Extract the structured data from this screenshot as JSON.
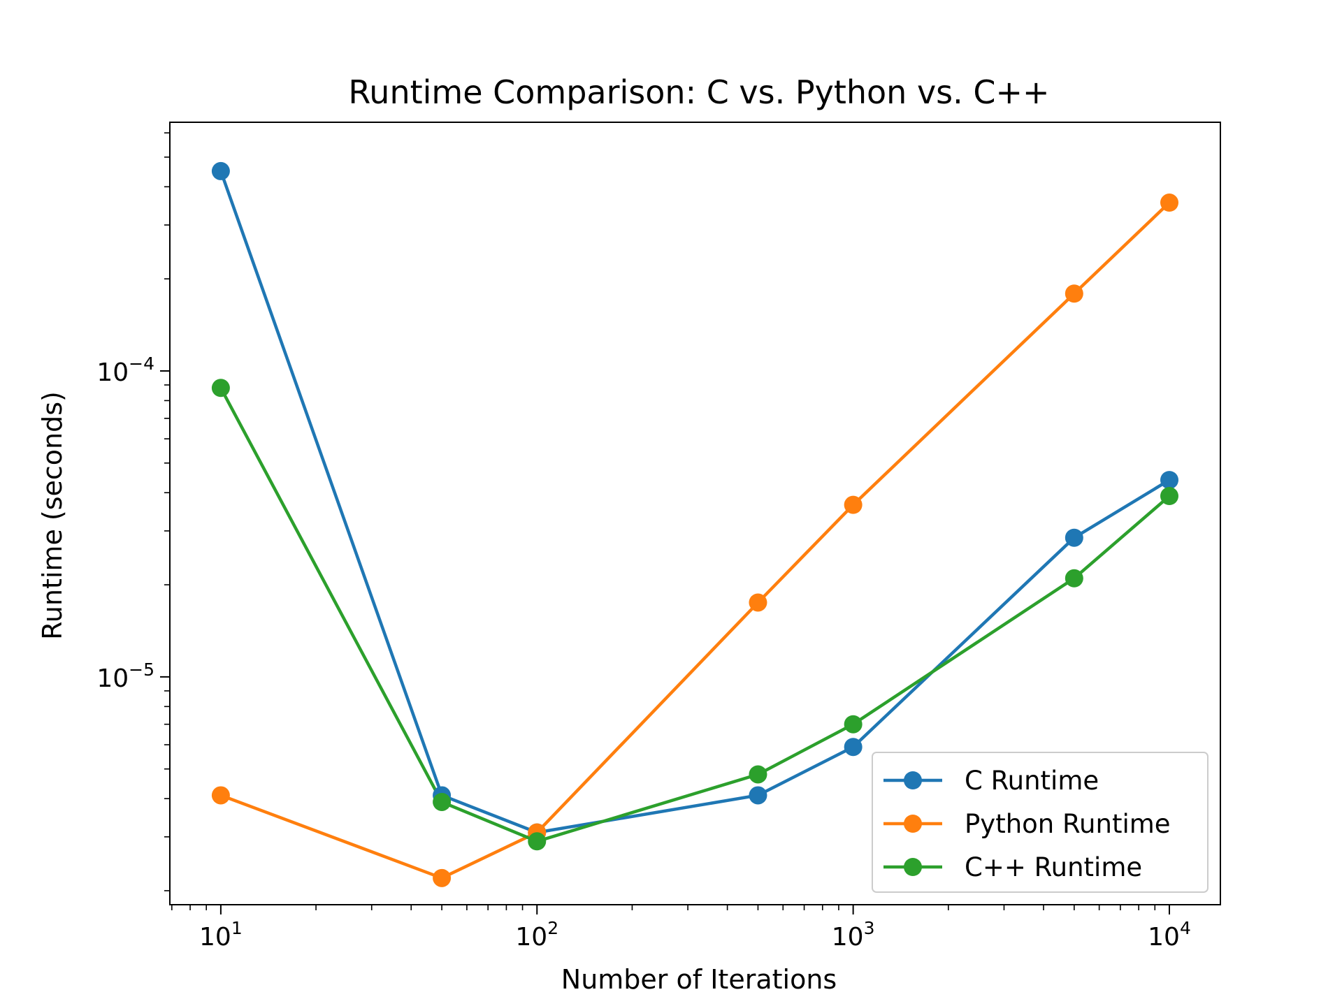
{
  "chart_data": {
    "type": "line",
    "title": "Runtime Comparison: C vs. Python vs. C++",
    "xlabel": "Number of Iterations",
    "ylabel": "Runtime (seconds)",
    "x_scale": "log",
    "y_scale": "log",
    "xlim": [
      6.9,
      14500
    ],
    "ylim": [
      1.8e-06,
      0.00065
    ],
    "x_ticks": [
      {
        "base": "10",
        "exp": "1",
        "value": 10
      },
      {
        "base": "10",
        "exp": "2",
        "value": 100
      },
      {
        "base": "10",
        "exp": "3",
        "value": 1000
      },
      {
        "base": "10",
        "exp": "4",
        "value": 10000
      }
    ],
    "y_ticks": [
      {
        "base": "10",
        "exp": "−5",
        "value": 1e-05
      },
      {
        "base": "10",
        "exp": "−4",
        "value": 0.0001
      }
    ],
    "grid": false,
    "legend_position": "lower-right",
    "x": [
      10,
      50,
      100,
      500,
      1000,
      5000,
      10000
    ],
    "series": [
      {
        "name": "C Runtime",
        "color": "#1f77b4",
        "values": [
          0.00045,
          4.1e-06,
          3.1e-06,
          4.1e-06,
          5.9e-06,
          2.85e-05,
          4.4e-05
        ]
      },
      {
        "name": "Python Runtime",
        "color": "#ff7f0e",
        "values": [
          4.1e-06,
          2.2e-06,
          3.1e-06,
          1.75e-05,
          3.65e-05,
          0.000179,
          0.000355
        ]
      },
      {
        "name": "C++ Runtime",
        "color": "#2ca02c",
        "values": [
          8.8e-05,
          3.9e-06,
          2.9e-06,
          4.8e-06,
          7e-06,
          2.1e-05,
          3.9e-05
        ]
      }
    ]
  }
}
